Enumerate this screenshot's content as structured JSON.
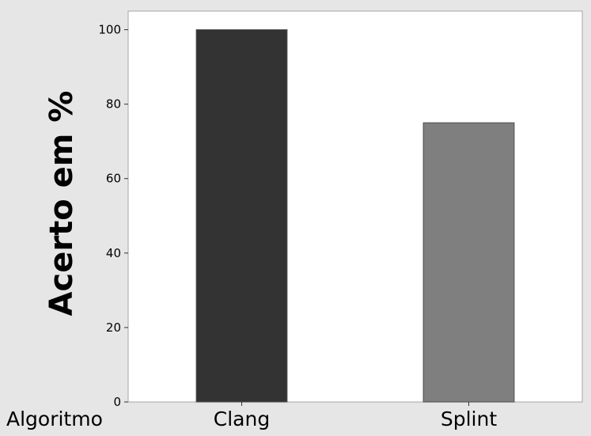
{
  "chart_data": {
    "type": "bar",
    "categories": [
      "Clang",
      "Splint"
    ],
    "values": [
      100,
      75
    ],
    "bar_colors": [
      "#333333",
      "#7f7f7f"
    ],
    "title": "",
    "xlabel": "Algoritmo",
    "ylabel": "Acerto em %",
    "ylim": [
      0,
      105
    ],
    "yticks": [
      0,
      20,
      40,
      60,
      80,
      100
    ],
    "grid": false,
    "legend": false
  },
  "colors": {
    "figure_background": "#e6e6e6",
    "plot_background": "#ffffff",
    "bar_outline": "#4d4d4d"
  }
}
